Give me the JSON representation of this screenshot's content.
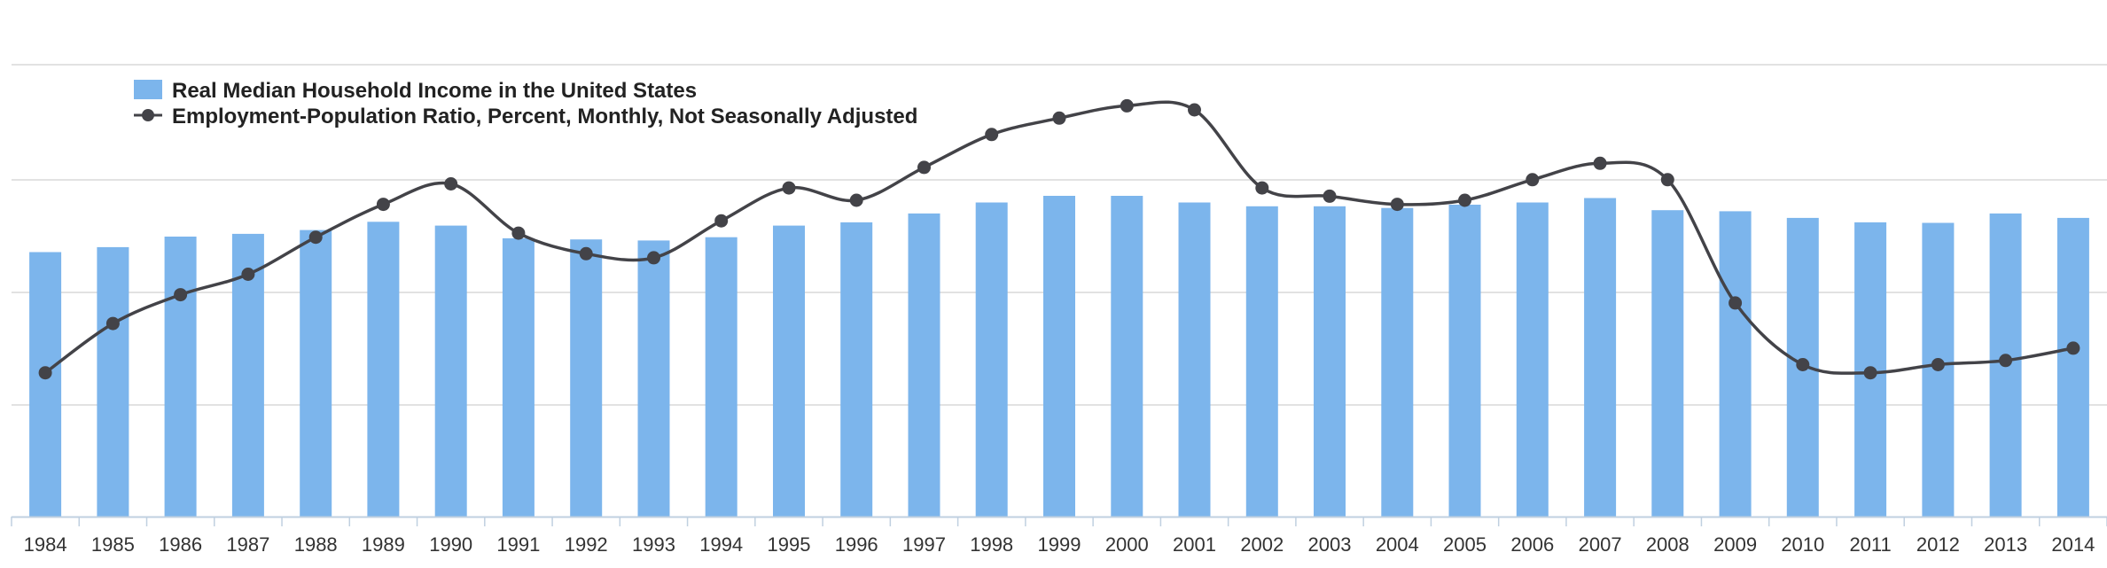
{
  "colors": {
    "bar": "#7cb5ec",
    "line": "#434348",
    "grid": "#d8d8d8",
    "axis": "#c0d0e0",
    "legend_bg": "#ffffff"
  },
  "chart_data": {
    "type": "bar",
    "categories": [
      "1984",
      "1985",
      "1986",
      "1987",
      "1988",
      "1989",
      "1990",
      "1991",
      "1992",
      "1993",
      "1994",
      "1995",
      "1996",
      "1997",
      "1998",
      "1999",
      "2000",
      "2001",
      "2002",
      "2003",
      "2004",
      "2005",
      "2006",
      "2007",
      "2008",
      "2009",
      "2010",
      "2011",
      "2012",
      "2013",
      "2014"
    ],
    "grid": true,
    "legend_position": "top-left",
    "series": [
      {
        "name": "Real Median Household Income in the United States",
        "type": "bar",
        "axis": "left",
        "values": [
          48000,
          48900,
          50800,
          51300,
          52000,
          53500,
          52800,
          50500,
          50300,
          50100,
          50700,
          52800,
          53400,
          55000,
          57000,
          58200,
          58200,
          57000,
          56300,
          56300,
          56000,
          56600,
          57000,
          57800,
          55600,
          55400,
          54200,
          53400,
          53300,
          55000,
          54200
        ],
        "ylim": [
          0,
          82000
        ]
      },
      {
        "name": "Employment-Population Ratio, Percent, Monthly, Not Seasonally Adjusted",
        "type": "line",
        "axis": "right",
        "values": [
          59.5,
          60.7,
          61.4,
          61.9,
          62.8,
          63.6,
          64.1,
          62.9,
          62.4,
          62.3,
          63.2,
          64.0,
          63.7,
          64.5,
          65.3,
          65.7,
          66.0,
          65.9,
          64.0,
          63.8,
          63.6,
          63.7,
          64.2,
          64.6,
          64.2,
          61.2,
          59.7,
          59.5,
          59.7,
          59.8,
          60.1
        ],
        "ylim": [
          56.0,
          67.0
        ]
      }
    ]
  }
}
